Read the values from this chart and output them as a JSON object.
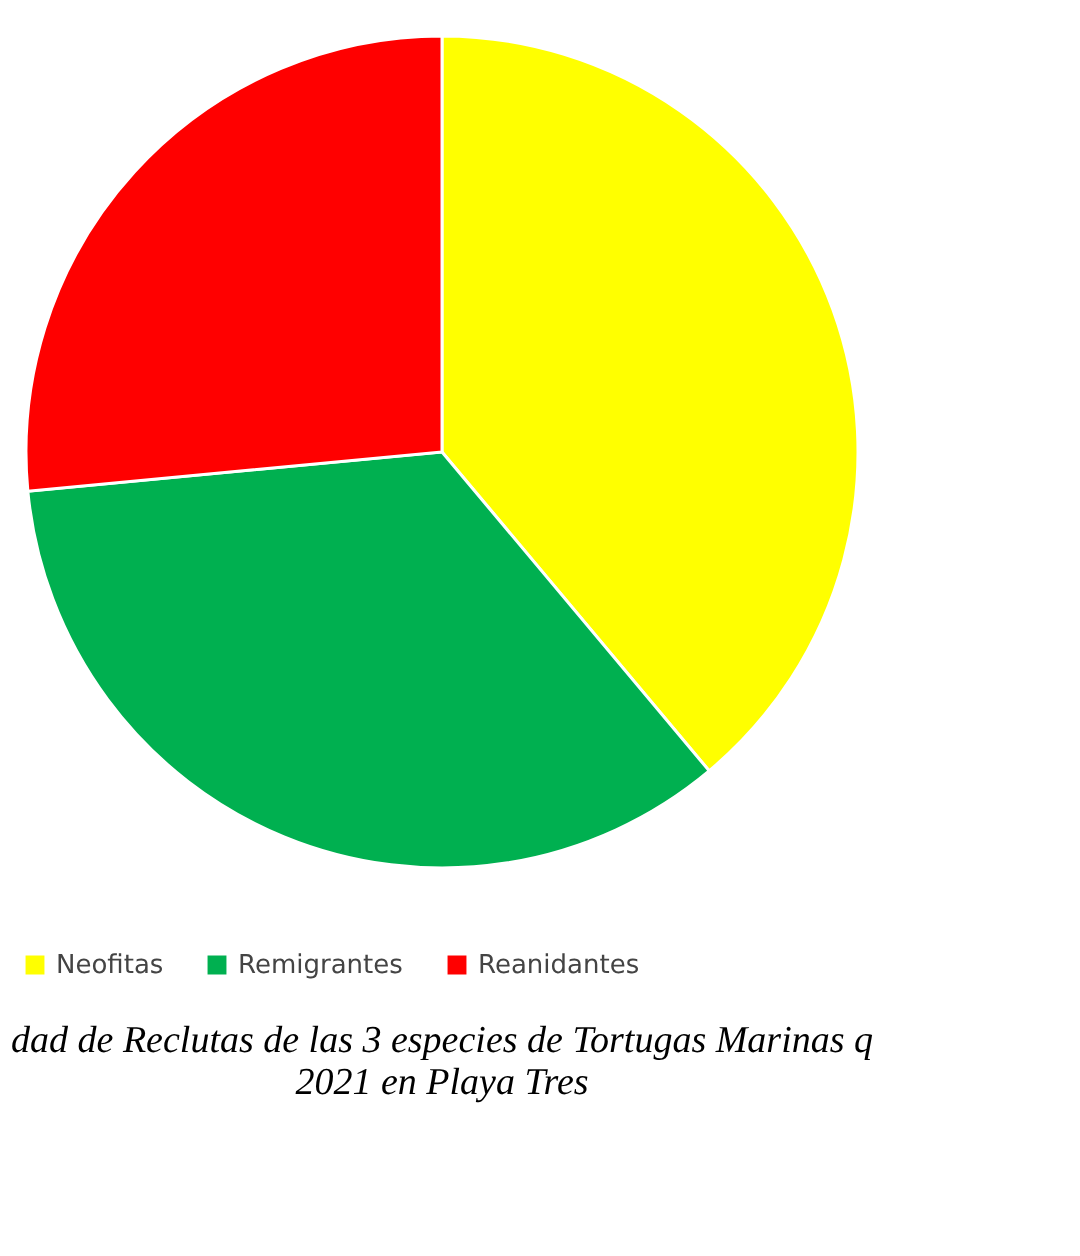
{
  "chart_data": {
    "type": "pie",
    "categories": [
      "Neofitas",
      "Remigrantes",
      "Reanidantes"
    ],
    "values": [
      38.9,
      34.6,
      26.5
    ],
    "colors": [
      "#ffff00",
      "#00b050",
      "#ff0000"
    ],
    "legend": "bottom",
    "annotations": [
      "dad de Reclutas de las 3 especies de Tortugas Marinas q",
      "2021 en Playa Tres"
    ]
  }
}
